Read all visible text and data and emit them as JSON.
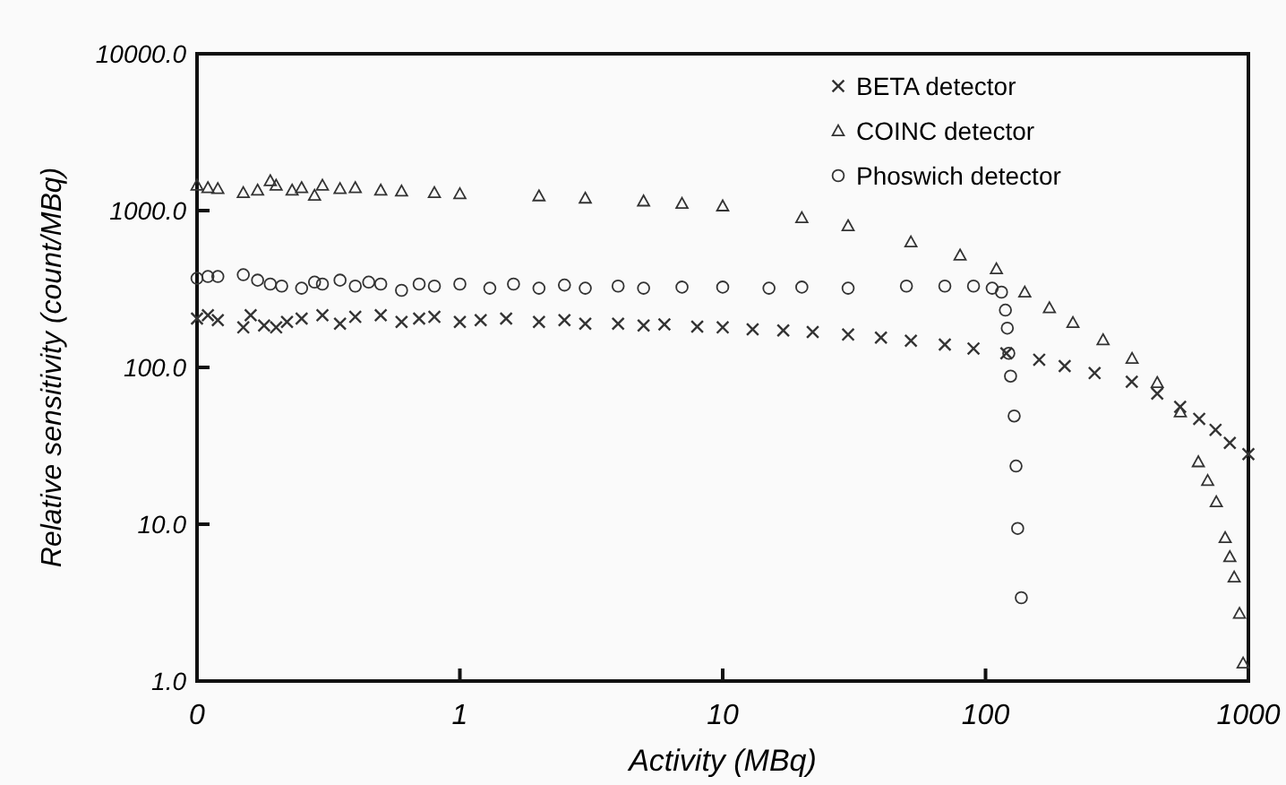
{
  "chart_data": {
    "type": "scatter",
    "xlabel": "Activity (MBq)",
    "ylabel": "Relative sensitivity (count/MBq)",
    "log": "xy",
    "grid": false,
    "legend": "top right",
    "xlim": [
      0.1,
      1000
    ],
    "xticks": [
      {
        "value": 0.1,
        "label": "0"
      },
      1,
      10,
      100,
      1000
    ],
    "ylim": [
      1,
      10000
    ],
    "yticks": [
      {
        "value": 1,
        "label": "1.0"
      },
      {
        "value": 10,
        "label": "10.0"
      },
      {
        "value": 100,
        "label": "100.0"
      },
      {
        "value": 1000,
        "label": "1000.0"
      },
      {
        "value": 10000,
        "label": "10000.0"
      }
    ],
    "series": [
      {
        "name": "BETA detector",
        "color": "#333333",
        "marker": "cross",
        "x": [
          0.1,
          0.11,
          0.12,
          0.15,
          0.16,
          0.18,
          0.2,
          0.22,
          0.25,
          0.3,
          0.35,
          0.4,
          0.5,
          0.6,
          0.7,
          0.8,
          1,
          1.2,
          1.5,
          2,
          2.5,
          3,
          4,
          5,
          6,
          8,
          10,
          13,
          17,
          22,
          30,
          40,
          52,
          70,
          90,
          120,
          160,
          200,
          260,
          360,
          450,
          550,
          650,
          750,
          850,
          1000
        ],
        "values": [
          205,
          215,
          200,
          180,
          215,
          185,
          180,
          195,
          205,
          215,
          190,
          210,
          215,
          195,
          205,
          210,
          195,
          200,
          205,
          195,
          200,
          190,
          190,
          185,
          188,
          182,
          180,
          175,
          172,
          168,
          162,
          155,
          148,
          140,
          132,
          123,
          112,
          102,
          92,
          81,
          68,
          56,
          47,
          40,
          33,
          28
        ]
      },
      {
        "name": "COINC detector",
        "color": "#333333",
        "marker": "triangle",
        "x": [
          0.1,
          0.11,
          0.12,
          0.15,
          0.17,
          0.19,
          0.2,
          0.23,
          0.25,
          0.28,
          0.3,
          0.35,
          0.4,
          0.5,
          0.6,
          0.8,
          1,
          2,
          3,
          5,
          7,
          10,
          20,
          30,
          52,
          80,
          110,
          141,
          175,
          215,
          280,
          361,
          450,
          551,
          645,
          700,
          755,
          816,
          850,
          883,
          925,
          955
        ],
        "values": [
          1450,
          1400,
          1380,
          1300,
          1350,
          1550,
          1450,
          1350,
          1400,
          1250,
          1450,
          1380,
          1400,
          1350,
          1330,
          1300,
          1280,
          1240,
          1200,
          1150,
          1110,
          1070,
          900,
          800,
          631,
          520,
          425,
          302,
          240,
          193,
          150,
          114,
          80,
          52,
          25,
          19,
          13.9,
          8.2,
          6.2,
          4.6,
          2.7,
          1.3
        ]
      },
      {
        "name": "Phoswich detector",
        "color": "#333333",
        "marker": "circle",
        "x": [
          0.1,
          0.11,
          0.12,
          0.15,
          0.17,
          0.19,
          0.21,
          0.25,
          0.28,
          0.3,
          0.35,
          0.4,
          0.45,
          0.5,
          0.6,
          0.7,
          0.8,
          1,
          1.3,
          1.6,
          2,
          2.5,
          3,
          4,
          5,
          7,
          10,
          15,
          20,
          30,
          50,
          70,
          90,
          106,
          115,
          119,
          121,
          122.6,
          124.5,
          128.5,
          130.6,
          132.5,
          136.8
        ],
        "values": [
          370,
          380,
          380,
          390,
          360,
          340,
          330,
          320,
          350,
          340,
          360,
          330,
          350,
          340,
          310,
          340,
          330,
          340,
          320,
          340,
          320,
          335,
          320,
          330,
          320,
          325,
          325,
          320,
          325,
          320,
          330,
          330,
          330,
          320,
          302,
          232,
          178,
          123,
          88,
          49,
          23.5,
          9.4,
          3.4
        ]
      }
    ]
  }
}
